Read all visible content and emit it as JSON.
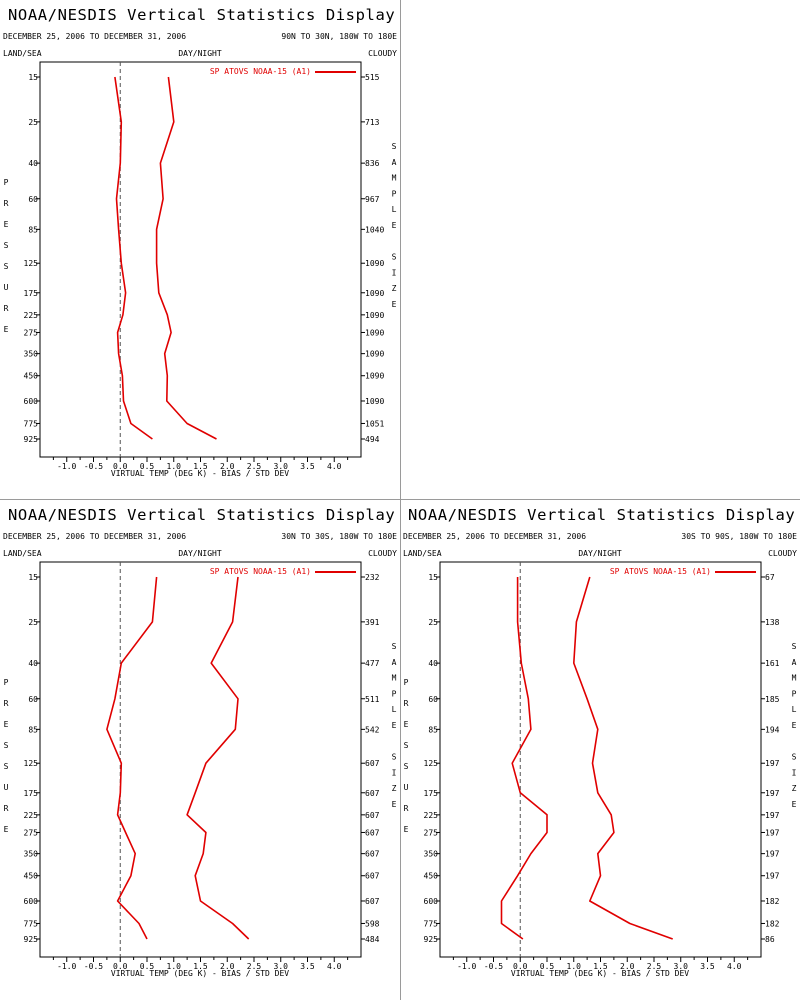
{
  "panel_common": {
    "title": "NOAA/NESDIS Vertical Statistics Display",
    "date_range": "DECEMBER 25, 2006 TO DECEMBER 31, 2006",
    "label_land_sea": "LAND/SEA",
    "label_day_night": "DAY/NIGHT",
    "label_cloudy": "CLOUDY",
    "left_axis_letters": [
      "P",
      "R",
      "E",
      "S",
      "S",
      "U",
      "R",
      "E"
    ],
    "right_axis_letters": [
      "S",
      "A",
      "M",
      "P",
      "L",
      "E",
      "",
      "S",
      "I",
      "Z",
      "E"
    ],
    "xlabel": "VIRTUAL TEMP (DEG K) - BIAS / STD DEV",
    "legend_label": "SP ATOVS NOAA-15 (A1)",
    "xlim": [
      -1.5,
      4.5
    ],
    "x_ticks": [
      "-1.0",
      "-0.5",
      "0.0",
      "0.5",
      "1.0",
      "1.5",
      "2.0",
      "2.5",
      "3.0",
      "3.5",
      "4.0"
    ],
    "x_tick_values": [
      -1.0,
      -0.5,
      0.0,
      0.5,
      1.0,
      1.5,
      2.0,
      2.5,
      3.0,
      3.5,
      4.0
    ],
    "pressure_levels": [
      "15",
      "25",
      "40",
      "60",
      "85",
      "125",
      "175",
      "225",
      "275",
      "350",
      "450",
      "600",
      "775",
      "925"
    ],
    "series_color": "#e00000"
  },
  "chart_data": [
    {
      "type": "line",
      "region": "90N TO 30N, 180W TO 180E",
      "y": [
        15,
        25,
        40,
        60,
        85,
        125,
        175,
        225,
        275,
        350,
        450,
        600,
        775,
        925
      ],
      "yscale": "log-pressure-inverted",
      "series": [
        {
          "role": "bias",
          "values": [
            -0.1,
            0.02,
            0.0,
            -0.07,
            -0.03,
            0.02,
            0.1,
            0.05,
            -0.05,
            -0.03,
            0.04,
            0.06,
            0.2,
            0.6
          ]
        },
        {
          "role": "std_dev",
          "values": [
            0.9,
            1.0,
            0.75,
            0.8,
            0.68,
            0.68,
            0.72,
            0.88,
            0.95,
            0.83,
            0.88,
            0.87,
            1.25,
            1.8
          ]
        }
      ],
      "sample_size": [
        "515",
        "713",
        "836",
        "967",
        "1040",
        "1090",
        "1090",
        "1090",
        "1090",
        "1090",
        "1090",
        "1090",
        "1051",
        "494"
      ]
    },
    {
      "type": "line",
      "region": "30N TO 30S, 180W TO 180E",
      "y": [
        15,
        25,
        40,
        60,
        85,
        125,
        175,
        225,
        275,
        350,
        450,
        600,
        775,
        925
      ],
      "yscale": "log-pressure-inverted",
      "series": [
        {
          "role": "bias",
          "values": [
            0.68,
            0.6,
            0.02,
            -0.1,
            -0.25,
            0.02,
            0.0,
            -0.05,
            0.1,
            0.28,
            0.2,
            -0.05,
            0.35,
            0.5
          ]
        },
        {
          "role": "std_dev",
          "values": [
            2.2,
            2.1,
            1.7,
            2.2,
            2.15,
            1.6,
            1.4,
            1.25,
            1.6,
            1.55,
            1.4,
            1.5,
            2.1,
            2.4
          ]
        }
      ],
      "sample_size": [
        "232",
        "391",
        "477",
        "511",
        "542",
        "607",
        "607",
        "607",
        "607",
        "607",
        "607",
        "607",
        "598",
        "484"
      ]
    },
    {
      "type": "line",
      "region": "30S TO 90S, 180W TO 180E",
      "y": [
        15,
        25,
        40,
        60,
        85,
        125,
        175,
        225,
        275,
        350,
        450,
        600,
        775,
        925
      ],
      "yscale": "log-pressure-inverted",
      "series": [
        {
          "role": "bias",
          "values": [
            -0.05,
            -0.05,
            0.02,
            0.15,
            0.2,
            -0.15,
            0.0,
            0.5,
            0.5,
            0.2,
            -0.05,
            -0.35,
            -0.35,
            0.05
          ]
        },
        {
          "role": "std_dev",
          "values": [
            1.3,
            1.05,
            1.0,
            1.25,
            1.45,
            1.35,
            1.45,
            1.7,
            1.75,
            1.45,
            1.5,
            1.3,
            2.05,
            2.85
          ]
        }
      ],
      "sample_size": [
        "67",
        "138",
        "161",
        "185",
        "194",
        "197",
        "197",
        "197",
        "197",
        "197",
        "197",
        "182",
        "182",
        "86"
      ]
    }
  ]
}
